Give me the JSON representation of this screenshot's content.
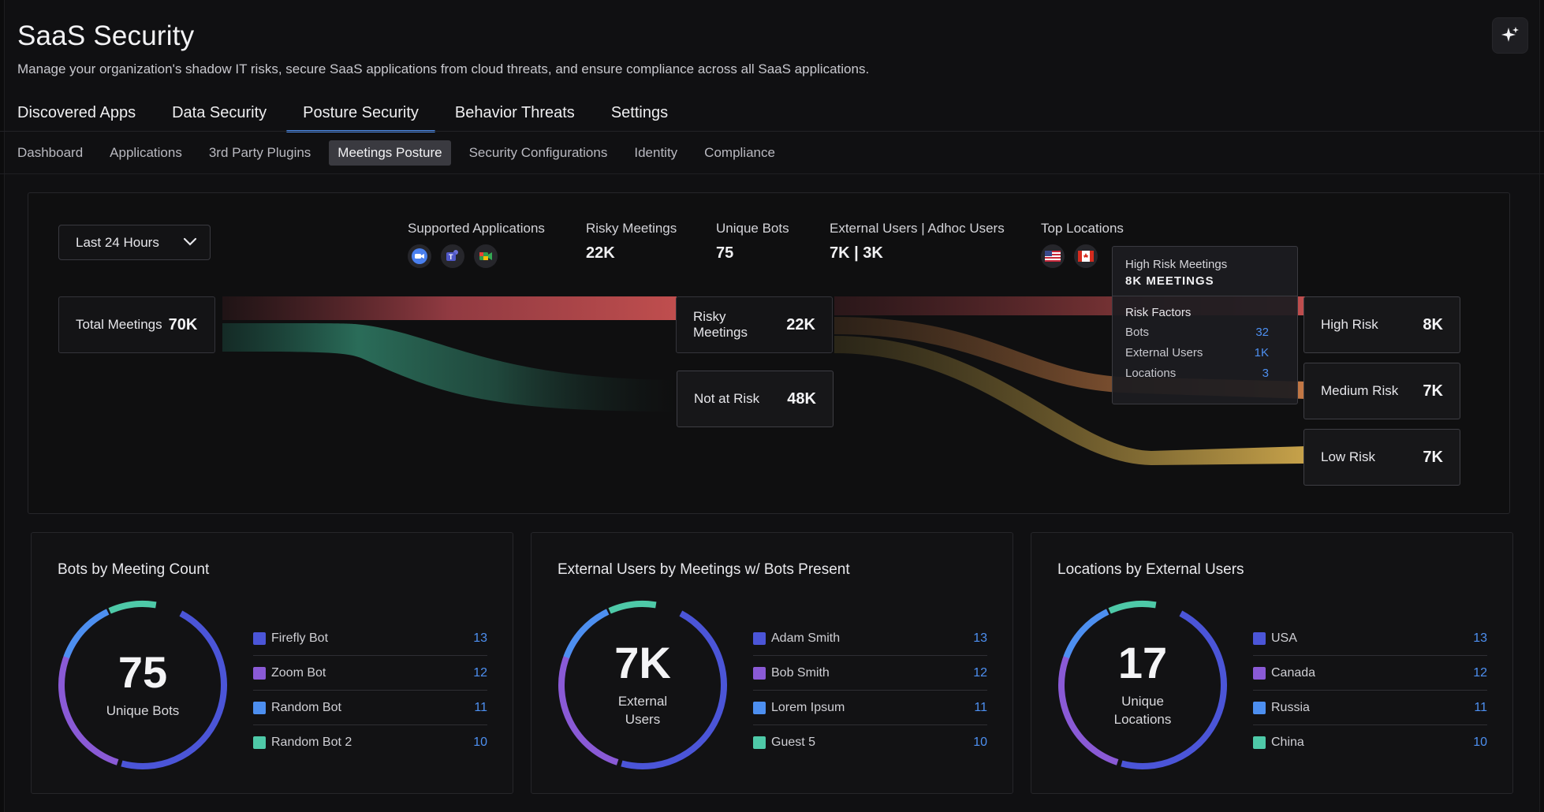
{
  "header": {
    "title": "SaaS Security",
    "subtitle": "Manage your organization's shadow IT risks, secure SaaS applications from cloud threats, and ensure compliance across all SaaS applications.",
    "ai_icon": "sparkle-icon"
  },
  "main_tabs": [
    {
      "label": "Discovered Apps",
      "active": false
    },
    {
      "label": "Data Security",
      "active": false
    },
    {
      "label": "Posture Security",
      "active": true
    },
    {
      "label": "Behavior Threats",
      "active": false
    },
    {
      "label": "Settings",
      "active": false
    }
  ],
  "sub_tabs": [
    {
      "label": "Dashboard",
      "active": false
    },
    {
      "label": "Applications",
      "active": false
    },
    {
      "label": "3rd Party Plugins",
      "active": false
    },
    {
      "label": "Meetings Posture",
      "active": true
    },
    {
      "label": "Security Configurations",
      "active": false
    },
    {
      "label": "Identity",
      "active": false
    },
    {
      "label": "Compliance",
      "active": false
    }
  ],
  "time_range": {
    "selected": "Last 24 Hours",
    "icon": "chevron-down-icon"
  },
  "stats": {
    "supported_apps": {
      "label": "Supported Applications",
      "icons": [
        "zoom-icon",
        "teams-icon",
        "google-meet-icon"
      ]
    },
    "risky_meetings": {
      "label": "Risky Meetings",
      "value": "22K"
    },
    "unique_bots": {
      "label": "Unique Bots",
      "value": "75"
    },
    "external_users": {
      "label": "External Users | Adhoc Users",
      "value": "7K | 3K"
    },
    "top_locations": {
      "label": "Top Locations",
      "icons": [
        "us-flag-icon",
        "canada-flag-icon"
      ]
    }
  },
  "flow": {
    "total": {
      "label": "Total Meetings",
      "value": "70K"
    },
    "risky": {
      "label": "Risky Meetings",
      "value": "22K"
    },
    "not_at_risk": {
      "label": "Not at Risk",
      "value": "48K"
    },
    "high": {
      "label": "High Risk",
      "value": "8K"
    },
    "medium": {
      "label": "Medium Risk",
      "value": "7K"
    },
    "low": {
      "label": "Low Risk",
      "value": "7K"
    },
    "colors": {
      "high": "#b84a4a",
      "medium": "#c47845",
      "low": "#c7a24a",
      "safe": "#2f8f72"
    }
  },
  "tooltip": {
    "title": "High Risk Meetings",
    "count": "8K MEETINGS",
    "factors_label": "Risk Factors",
    "rows": [
      {
        "label": "Bots",
        "value": "32"
      },
      {
        "label": "External Users",
        "value": "1K"
      },
      {
        "label": "Locations",
        "value": "3"
      }
    ]
  },
  "cards": [
    {
      "title": "Bots by Meeting Count",
      "center_value": "75",
      "center_label": "Unique Bots",
      "items": [
        {
          "label": "Firefly Bot",
          "value": "13",
          "color": "#4b55d8"
        },
        {
          "label": "Zoom Bot",
          "value": "12",
          "color": "#8a5ad6"
        },
        {
          "label": "Random Bot",
          "value": "11",
          "color": "#4d8ff0"
        },
        {
          "label": "Random Bot 2",
          "value": "10",
          "color": "#4ec9a8"
        }
      ]
    },
    {
      "title": "External Users by Meetings w/ Bots Present",
      "center_value": "7K",
      "center_label": "External Users",
      "items": [
        {
          "label": "Adam Smith",
          "value": "13",
          "color": "#4b55d8"
        },
        {
          "label": "Bob Smith",
          "value": "12",
          "color": "#8a5ad6"
        },
        {
          "label": "Lorem Ipsum",
          "value": "11",
          "color": "#4d8ff0"
        },
        {
          "label": "Guest 5",
          "value": "10",
          "color": "#4ec9a8"
        }
      ]
    },
    {
      "title": "Locations by External Users",
      "center_value": "17",
      "center_label": "Unique Locations",
      "items": [
        {
          "label": "USA",
          "value": "13",
          "color": "#4b55d8"
        },
        {
          "label": "Canada",
          "value": "12",
          "color": "#8a5ad6"
        },
        {
          "label": "Russia",
          "value": "11",
          "color": "#4d8ff0"
        },
        {
          "label": "China",
          "value": "10",
          "color": "#4ec9a8"
        }
      ]
    }
  ]
}
